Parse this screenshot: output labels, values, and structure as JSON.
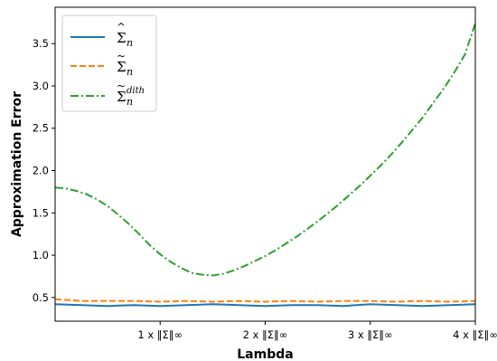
{
  "chart_data": {
    "type": "line",
    "title": "",
    "xlabel": "Lambda",
    "ylabel": "Approximation Error",
    "xlim": [
      0,
      4
    ],
    "ylim": [
      0.22,
      3.93
    ],
    "grid": false,
    "legend_position": "top-left",
    "x_ticks": [
      {
        "value": 1,
        "label": "1 x ‖Σ‖∞"
      },
      {
        "value": 2,
        "label": "2 x ‖Σ‖∞"
      },
      {
        "value": 3,
        "label": "3 x ‖Σ‖∞"
      },
      {
        "value": 4,
        "label": "4 x ‖Σ‖∞"
      }
    ],
    "y_ticks": [
      {
        "value": 0.5,
        "label": "0.5"
      },
      {
        "value": 1.0,
        "label": "1.0"
      },
      {
        "value": 1.5,
        "label": "1.5"
      },
      {
        "value": 2.0,
        "label": "2.0"
      },
      {
        "value": 2.5,
        "label": "2.5"
      },
      {
        "value": 3.0,
        "label": "3.0"
      },
      {
        "value": 3.5,
        "label": "3.5"
      }
    ],
    "series": [
      {
        "legend_base": "Σ",
        "legend_accent": "^",
        "legend_sub": "n",
        "legend_sup": "",
        "color": "#1f77b4",
        "dash": "solid",
        "x": [
          0,
          0.25,
          0.5,
          0.75,
          1.0,
          1.25,
          1.5,
          1.75,
          2.0,
          2.25,
          2.5,
          2.75,
          3.0,
          3.25,
          3.5,
          3.75,
          4.0
        ],
        "y": [
          0.42,
          0.41,
          0.4,
          0.41,
          0.4,
          0.41,
          0.42,
          0.41,
          0.4,
          0.41,
          0.41,
          0.4,
          0.42,
          0.41,
          0.4,
          0.41,
          0.42
        ]
      },
      {
        "legend_base": "Σ",
        "legend_accent": "~",
        "legend_sub": "n",
        "legend_sup": "",
        "color": "#ff7f0e",
        "dash": "dashed",
        "x": [
          0,
          0.25,
          0.5,
          0.75,
          1.0,
          1.25,
          1.5,
          1.75,
          2.0,
          2.25,
          2.5,
          2.75,
          3.0,
          3.25,
          3.5,
          3.75,
          4.0
        ],
        "y": [
          0.48,
          0.46,
          0.46,
          0.46,
          0.45,
          0.46,
          0.45,
          0.46,
          0.45,
          0.46,
          0.45,
          0.46,
          0.46,
          0.45,
          0.46,
          0.45,
          0.46
        ]
      },
      {
        "legend_base": "Σ",
        "legend_accent": "~",
        "legend_sub": "n",
        "legend_sup": "dith",
        "color": "#2ca02c",
        "dash": "dashdot",
        "x": [
          0,
          0.1,
          0.2,
          0.3,
          0.4,
          0.5,
          0.6,
          0.7,
          0.8,
          0.9,
          1.0,
          1.1,
          1.2,
          1.3,
          1.4,
          1.5,
          1.6,
          1.7,
          1.8,
          1.9,
          2.0,
          2.1,
          2.2,
          2.3,
          2.4,
          2.5,
          2.6,
          2.7,
          2.8,
          2.9,
          3.0,
          3.1,
          3.2,
          3.3,
          3.4,
          3.5,
          3.6,
          3.7,
          3.8,
          3.9,
          4.0
        ],
        "y": [
          1.8,
          1.79,
          1.76,
          1.72,
          1.66,
          1.58,
          1.48,
          1.37,
          1.25,
          1.12,
          1.01,
          0.92,
          0.85,
          0.79,
          0.77,
          0.76,
          0.78,
          0.82,
          0.87,
          0.93,
          0.99,
          1.06,
          1.14,
          1.22,
          1.31,
          1.4,
          1.5,
          1.6,
          1.71,
          1.82,
          1.94,
          2.06,
          2.19,
          2.33,
          2.48,
          2.63,
          2.8,
          2.97,
          3.16,
          3.37,
          3.74
        ]
      }
    ]
  }
}
